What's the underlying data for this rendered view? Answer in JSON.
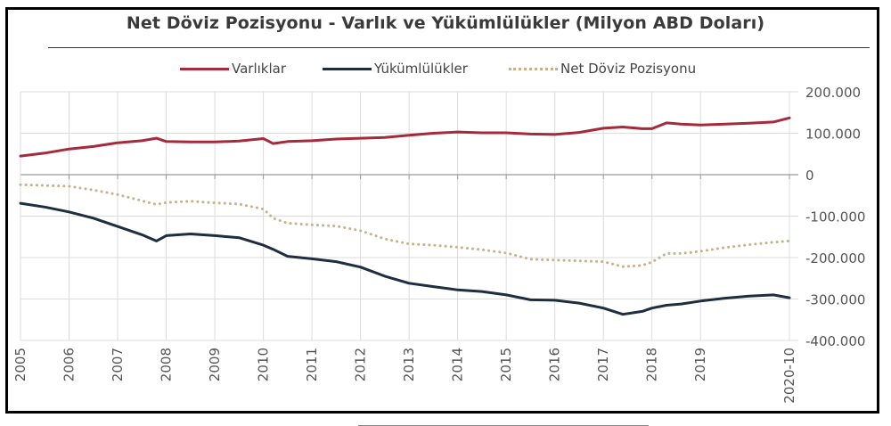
{
  "chart_data": {
    "type": "line",
    "title": "Net Döviz Pozisyonu - Varlık ve Yükümlülükler (Milyon ABD Doları)",
    "xlabel": "",
    "ylabel": "",
    "ylim": [
      -400000,
      200000
    ],
    "xlim": [
      2005,
      2020.83
    ],
    "grid": true,
    "legend_position": "top",
    "y_ticks": [
      200000,
      100000,
      0,
      -100000,
      -200000,
      -300000,
      -400000
    ],
    "y_tick_labels": [
      "200.000",
      "100.000",
      "0",
      "-100.000",
      "-200.000",
      "-300.000",
      "-400.000"
    ],
    "x_ticks": [
      2005,
      2006,
      2007,
      2008,
      2009,
      2010,
      2011,
      2012,
      2013,
      2014,
      2015,
      2016,
      2017,
      2018,
      2019,
      2020.83
    ],
    "x_tick_labels": [
      "2005",
      "2006",
      "2007",
      "2008",
      "2009",
      "2010",
      "2011",
      "2012",
      "2013",
      "2014",
      "2015",
      "2016",
      "2017",
      "2018",
      "2019",
      "2020-10"
    ],
    "x": [
      2005.0,
      2005.5,
      2006.0,
      2006.5,
      2007.0,
      2007.5,
      2007.8,
      2008.0,
      2008.5,
      2009.0,
      2009.5,
      2010.0,
      2010.2,
      2010.5,
      2011.0,
      2011.5,
      2012.0,
      2012.5,
      2013.0,
      2013.5,
      2014.0,
      2014.5,
      2015.0,
      2015.5,
      2016.0,
      2016.5,
      2017.0,
      2017.4,
      2017.8,
      2018.0,
      2018.3,
      2018.6,
      2019.0,
      2019.5,
      2020.0,
      2020.5,
      2020.83
    ],
    "series": [
      {
        "name": "Varlıklar",
        "color": "#a52a3c",
        "style": "solid",
        "values": [
          45000,
          52000,
          62000,
          68000,
          77000,
          82000,
          88000,
          80000,
          79000,
          79000,
          81000,
          87000,
          75000,
          80000,
          82000,
          86000,
          88000,
          90000,
          95000,
          100000,
          103000,
          101000,
          101000,
          98000,
          97000,
          102000,
          112000,
          115000,
          111000,
          111000,
          125000,
          122000,
          120000,
          122000,
          124000,
          127000,
          137000
        ]
      },
      {
        "name": "Yükümlülükler",
        "color": "#1e2d40",
        "style": "solid",
        "values": [
          -69000,
          -78000,
          -90000,
          -105000,
          -125000,
          -145000,
          -160000,
          -147000,
          -143000,
          -147000,
          -152000,
          -170000,
          -180000,
          -197000,
          -203000,
          -210000,
          -223000,
          -245000,
          -262000,
          -270000,
          -278000,
          -282000,
          -290000,
          -302000,
          -303000,
          -310000,
          -322000,
          -337000,
          -330000,
          -322000,
          -315000,
          -312000,
          -305000,
          -298000,
          -293000,
          -290000,
          -297000
        ]
      },
      {
        "name": "Net Döviz Pozisyonu",
        "color": "#c8b08a",
        "style": "dotted",
        "values": [
          -24000,
          -26000,
          -28000,
          -37000,
          -48000,
          -63000,
          -72000,
          -67000,
          -64000,
          -68000,
          -71000,
          -83000,
          -105000,
          -117000,
          -121000,
          -124000,
          -135000,
          -155000,
          -167000,
          -170000,
          -175000,
          -181000,
          -189000,
          -204000,
          -206000,
          -208000,
          -210000,
          -222000,
          -219000,
          -211000,
          -190000,
          -190000,
          -185000,
          -176000,
          -169000,
          -163000,
          -160000
        ]
      }
    ]
  },
  "legend": [
    {
      "label": "Varlıklar",
      "color": "#a52a3c",
      "style": "solid"
    },
    {
      "label": "Yükümlülükler",
      "color": "#1e2d40",
      "style": "solid"
    },
    {
      "label": "Net Döviz Pozisyonu",
      "color": "#c8b08a",
      "style": "dotted"
    }
  ],
  "colors": {
    "grid": "#dcdcdc",
    "zero_line": "#9a9a9a",
    "axis_text": "#555555",
    "title_text": "#3a3a3a"
  }
}
